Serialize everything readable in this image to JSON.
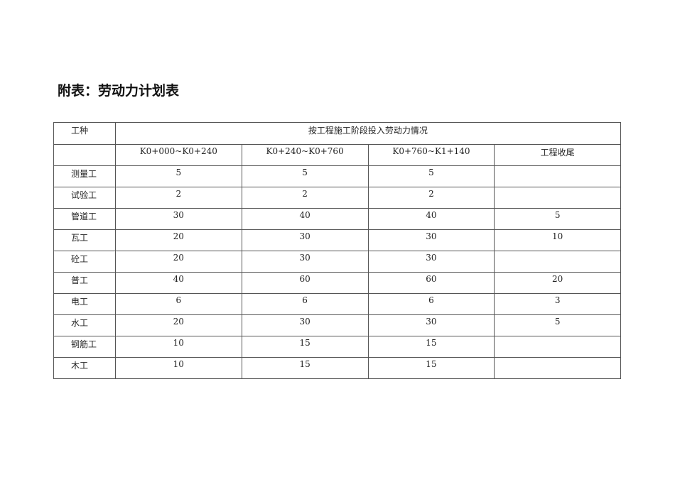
{
  "title": "附表：劳动力计划表",
  "table": {
    "header_col": "工种",
    "header_group": "按工程施工阶段投入劳动力情况",
    "stages": [
      "K0+000~K0+240",
      "K0+240~K0+760",
      "K0+760~K1+140",
      "工程收尾"
    ],
    "rows": [
      {
        "name": "测量工",
        "values": [
          "5",
          "5",
          "5",
          ""
        ]
      },
      {
        "name": "试验工",
        "values": [
          "2",
          "2",
          "2",
          ""
        ]
      },
      {
        "name": "管道工",
        "values": [
          "30",
          "40",
          "40",
          "5"
        ]
      },
      {
        "name": "瓦工",
        "values": [
          "20",
          "30",
          "30",
          "10"
        ]
      },
      {
        "name": "砼工",
        "values": [
          "20",
          "30",
          "30",
          ""
        ]
      },
      {
        "name": "普工",
        "values": [
          "40",
          "60",
          "60",
          "20"
        ]
      },
      {
        "name": "电工",
        "values": [
          "6",
          "6",
          "6",
          "3"
        ]
      },
      {
        "name": "水工",
        "values": [
          "20",
          "30",
          "30",
          "5"
        ]
      },
      {
        "name": "钢筋工",
        "values": [
          "10",
          "15",
          "15",
          ""
        ]
      },
      {
        "name": "木工",
        "values": [
          "10",
          "15",
          "15",
          ""
        ]
      }
    ]
  }
}
